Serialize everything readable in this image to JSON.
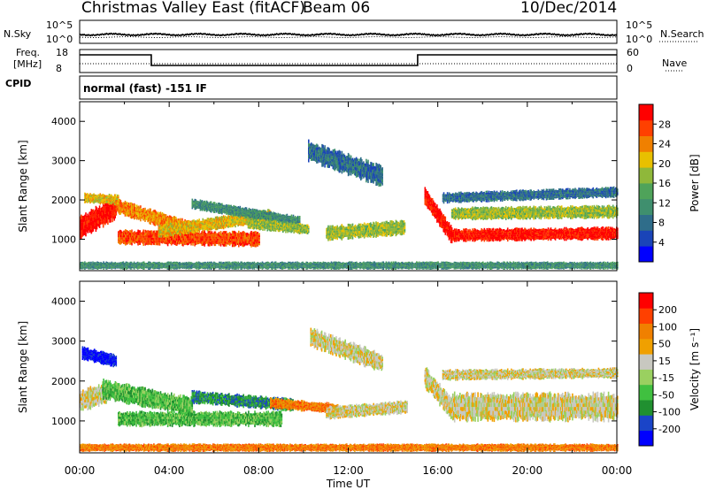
{
  "header": {
    "station": "Christmas Valley East (fitACF)",
    "beam": "Beam 06",
    "date": "10/Dec/2014"
  },
  "noise_panel": {
    "left_label": "N.Sky",
    "right_label": "N.Search",
    "left_ticks": [
      "10^5",
      "10^0"
    ],
    "right_ticks": [
      "10^5",
      "10^0"
    ]
  },
  "freq_panel": {
    "left_label_1": "Freq.",
    "left_label_2": "[MHz]",
    "right_label": "Nave",
    "left_ticks": [
      "18",
      "8"
    ],
    "right_ticks": [
      "60",
      "0"
    ]
  },
  "cpid_panel": {
    "label": "CPID",
    "mode": "normal (fast) -151 IF"
  },
  "colors": {
    "power_scale": [
      "#0000ff",
      "#1a44b8",
      "#2f6d8a",
      "#3f8f6e",
      "#4fa35a",
      "#8fb83a",
      "#e8c000",
      "#f08000",
      "#ff4000",
      "#ff0000"
    ],
    "velocity_scale": [
      "#0000ff",
      "#1a44c8",
      "#209030",
      "#40c040",
      "#9ad060",
      "#c8c8c0",
      "#f0a000",
      "#f08000",
      "#ff4000",
      "#ff0000"
    ]
  },
  "chart_data": [
    {
      "type": "heatmap",
      "panel": "power",
      "ylabel": "Slant Range [km]",
      "yticks": [
        1000,
        2000,
        3000,
        4000
      ],
      "ylim": [
        200,
        4500
      ],
      "xlim": [
        0,
        24
      ],
      "colorbar_label": "Power [dB]",
      "colorbar_ticks": [
        "28",
        "24",
        "20",
        "16",
        "12",
        "8",
        "4"
      ],
      "bands": [
        {
          "t0": 0.0,
          "t1": 1.6,
          "r_start": 1300,
          "r_end": 1800,
          "width": 550,
          "level": 9
        },
        {
          "t0": 0.2,
          "t1": 1.7,
          "r_start": 2050,
          "r_end": 2000,
          "width": 250,
          "level": 6
        },
        {
          "t0": 1.6,
          "t1": 5.0,
          "r_start": 1850,
          "r_end": 1250,
          "width": 350,
          "level": 7
        },
        {
          "t0": 1.7,
          "t1": 8.0,
          "r_start": 1050,
          "r_end": 1000,
          "width": 350,
          "level": 8
        },
        {
          "t0": 3.5,
          "t1": 8.5,
          "r_start": 1200,
          "r_end": 1600,
          "width": 300,
          "level": 6
        },
        {
          "t0": 5.0,
          "t1": 9.8,
          "r_start": 1900,
          "r_end": 1450,
          "width": 250,
          "level": 3
        },
        {
          "t0": 7.5,
          "t1": 10.2,
          "r_start": 1400,
          "r_end": 1250,
          "width": 250,
          "level": 5
        },
        {
          "t0": 11.0,
          "t1": 14.5,
          "r_start": 1150,
          "r_end": 1300,
          "width": 350,
          "level": 5
        },
        {
          "t0": 10.2,
          "t1": 13.5,
          "r_start": 3250,
          "r_end": 2600,
          "width": 500,
          "level": 2
        },
        {
          "t0": 15.4,
          "t1": 16.6,
          "r_start": 2100,
          "r_end": 1100,
          "width": 400,
          "level": 9
        },
        {
          "t0": 16.6,
          "t1": 24.0,
          "r_start": 1100,
          "r_end": 1150,
          "width": 300,
          "level": 9
        },
        {
          "t0": 16.6,
          "t1": 24.0,
          "r_start": 1650,
          "r_end": 1700,
          "width": 300,
          "level": 5
        },
        {
          "t0": 16.2,
          "t1": 24.0,
          "r_start": 2050,
          "r_end": 2200,
          "width": 250,
          "level": 2
        },
        {
          "t0": 0.0,
          "t1": 24.0,
          "r_start": 330,
          "r_end": 330,
          "width": 180,
          "level": 3
        }
      ]
    },
    {
      "type": "heatmap",
      "panel": "velocity",
      "ylabel": "Slant Range [km]",
      "xlabel": "Time UT",
      "yticks": [
        1000,
        2000,
        3000,
        4000
      ],
      "ylim": [
        200,
        4500
      ],
      "xlim": [
        0,
        24
      ],
      "xticks": [
        "00:00",
        "04:00",
        "08:00",
        "12:00",
        "16:00",
        "20:00",
        "00:00"
      ],
      "colorbar_label": "Velocity [m s⁻¹]",
      "colorbar_ticks": [
        "200",
        "100",
        "50",
        "15",
        "-15",
        "-50",
        "-100",
        "-200"
      ],
      "bands": [
        {
          "t0": 0.0,
          "t1": 1.2,
          "r_start": 1500,
          "r_end": 1700,
          "width": 500,
          "level": 5
        },
        {
          "t0": 0.1,
          "t1": 1.6,
          "r_start": 2700,
          "r_end": 2500,
          "width": 300,
          "level": 0
        },
        {
          "t0": 1.0,
          "t1": 5.0,
          "r_start": 1800,
          "r_end": 1350,
          "width": 450,
          "level": 3
        },
        {
          "t0": 1.7,
          "t1": 9.0,
          "r_start": 1050,
          "r_end": 1050,
          "width": 350,
          "level": 3
        },
        {
          "t0": 5.0,
          "t1": 9.5,
          "r_start": 1600,
          "r_end": 1400,
          "width": 300,
          "level": 2
        },
        {
          "t0": 8.5,
          "t1": 11.5,
          "r_start": 1450,
          "r_end": 1300,
          "width": 250,
          "level": 7
        },
        {
          "t0": 11.0,
          "t1": 14.6,
          "r_start": 1200,
          "r_end": 1350,
          "width": 300,
          "level": 5
        },
        {
          "t0": 10.3,
          "t1": 13.5,
          "r_start": 3100,
          "r_end": 2450,
          "width": 450,
          "level": 5
        },
        {
          "t0": 15.4,
          "t1": 16.6,
          "r_start": 2100,
          "r_end": 1300,
          "width": 500,
          "level": 5
        },
        {
          "t0": 16.6,
          "t1": 24.0,
          "r_start": 1350,
          "r_end": 1350,
          "width": 650,
          "level": 5
        },
        {
          "t0": 16.2,
          "t1": 24.0,
          "r_start": 2150,
          "r_end": 2200,
          "width": 250,
          "level": 5
        },
        {
          "t0": 0.0,
          "t1": 24.0,
          "r_start": 330,
          "r_end": 330,
          "width": 180,
          "level": 7
        }
      ]
    }
  ]
}
